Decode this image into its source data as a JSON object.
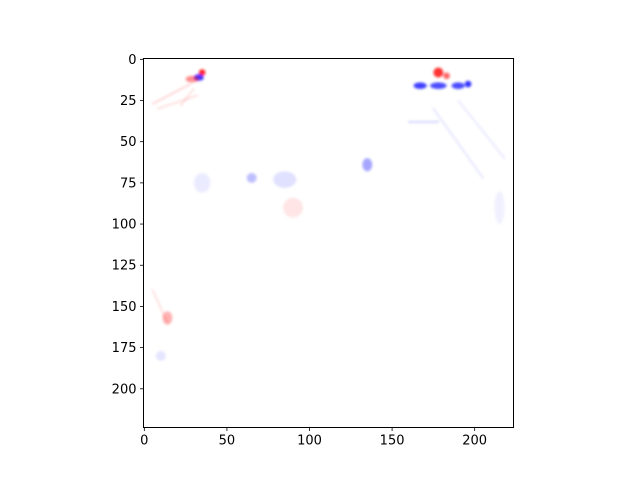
{
  "chart_data": {
    "type": "heatmap",
    "title": "",
    "xlabel": "",
    "ylabel": "",
    "colormap": "bwr",
    "colors": {
      "negative": "#0000ff",
      "zero": "#ffffff",
      "positive": "#ff0000"
    },
    "image_size": [
      224,
      224
    ],
    "xlim": [
      -0.5,
      223.5
    ],
    "ylim": [
      223.5,
      -0.5
    ],
    "x_ticks": [
      0,
      50,
      100,
      150,
      200
    ],
    "y_ticks": [
      0,
      25,
      50,
      75,
      100,
      125,
      150,
      175,
      200
    ],
    "grid": false,
    "legend": "none",
    "features": [
      {
        "kind": "blob",
        "x": 35,
        "y": 8,
        "rx": 2,
        "ry": 2,
        "sign": "positive",
        "intensity": 0.85
      },
      {
        "kind": "blob",
        "x": 33,
        "y": 11,
        "rx": 3,
        "ry": 2,
        "sign": "negative",
        "intensity": 0.8
      },
      {
        "kind": "blob",
        "x": 29,
        "y": 12,
        "rx": 4,
        "ry": 2,
        "sign": "positive",
        "intensity": 0.45
      },
      {
        "kind": "stroke",
        "x1": 5,
        "y1": 27,
        "x2": 28,
        "y2": 15,
        "sign": "positive",
        "intensity": 0.2
      },
      {
        "kind": "stroke",
        "x1": 8,
        "y1": 30,
        "x2": 32,
        "y2": 22,
        "sign": "positive",
        "intensity": 0.15
      },
      {
        "kind": "stroke",
        "x1": 22,
        "y1": 28,
        "x2": 30,
        "y2": 18,
        "sign": "positive",
        "intensity": 0.15
      },
      {
        "kind": "blob",
        "x": 178,
        "y": 8,
        "rx": 3,
        "ry": 3,
        "sign": "positive",
        "intensity": 0.8
      },
      {
        "kind": "blob",
        "x": 183,
        "y": 10,
        "rx": 2,
        "ry": 2,
        "sign": "positive",
        "intensity": 0.6
      },
      {
        "kind": "blob",
        "x": 167,
        "y": 16,
        "rx": 4,
        "ry": 2,
        "sign": "negative",
        "intensity": 0.75
      },
      {
        "kind": "blob",
        "x": 178,
        "y": 16,
        "rx": 5,
        "ry": 2,
        "sign": "negative",
        "intensity": 0.7
      },
      {
        "kind": "blob",
        "x": 190,
        "y": 16,
        "rx": 4,
        "ry": 2,
        "sign": "negative",
        "intensity": 0.7
      },
      {
        "kind": "blob",
        "x": 196,
        "y": 15,
        "rx": 2,
        "ry": 2,
        "sign": "negative",
        "intensity": 0.8
      },
      {
        "kind": "stroke",
        "x1": 160,
        "y1": 38,
        "x2": 178,
        "y2": 38,
        "sign": "negative",
        "intensity": 0.2
      },
      {
        "kind": "stroke",
        "x1": 175,
        "y1": 30,
        "x2": 205,
        "y2": 72,
        "sign": "negative",
        "intensity": 0.12
      },
      {
        "kind": "stroke",
        "x1": 190,
        "y1": 25,
        "x2": 218,
        "y2": 60,
        "sign": "negative",
        "intensity": 0.1
      },
      {
        "kind": "blob",
        "x": 135,
        "y": 64,
        "rx": 3,
        "ry": 4,
        "sign": "negative",
        "intensity": 0.35
      },
      {
        "kind": "blob",
        "x": 65,
        "y": 72,
        "rx": 3,
        "ry": 3,
        "sign": "negative",
        "intensity": 0.25
      },
      {
        "kind": "blob",
        "x": 85,
        "y": 73,
        "rx": 7,
        "ry": 5,
        "sign": "negative",
        "intensity": 0.12
      },
      {
        "kind": "blob",
        "x": 90,
        "y": 90,
        "rx": 6,
        "ry": 6,
        "sign": "positive",
        "intensity": 0.1
      },
      {
        "kind": "blob",
        "x": 35,
        "y": 75,
        "rx": 5,
        "ry": 6,
        "sign": "negative",
        "intensity": 0.08
      },
      {
        "kind": "blob",
        "x": 14,
        "y": 157,
        "rx": 3,
        "ry": 4,
        "sign": "positive",
        "intensity": 0.3
      },
      {
        "kind": "stroke",
        "x1": 5,
        "y1": 140,
        "x2": 14,
        "y2": 160,
        "sign": "positive",
        "intensity": 0.15
      },
      {
        "kind": "blob",
        "x": 10,
        "y": 180,
        "rx": 3,
        "ry": 3,
        "sign": "negative",
        "intensity": 0.1
      },
      {
        "kind": "blob",
        "x": 215,
        "y": 90,
        "rx": 3,
        "ry": 10,
        "sign": "negative",
        "intensity": 0.06
      }
    ]
  }
}
